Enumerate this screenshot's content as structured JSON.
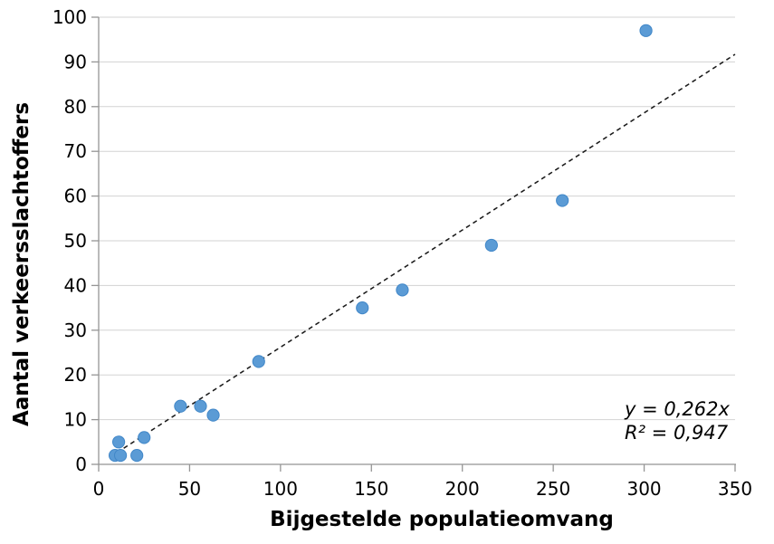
{
  "chart_data": {
    "type": "scatter",
    "title": "",
    "xlabel": "Bijgestelde populatieomvang",
    "ylabel": "Aantal verkeersslachtoffers",
    "xlim": [
      0,
      350
    ],
    "ylim": [
      0,
      100
    ],
    "x_ticks": [
      0,
      50,
      100,
      150,
      200,
      250,
      300,
      350
    ],
    "y_ticks": [
      0,
      10,
      20,
      30,
      40,
      50,
      60,
      70,
      80,
      90,
      100
    ],
    "grid": "horizontal",
    "legend_position": "none",
    "points": [
      [
        9,
        2
      ],
      [
        11,
        5
      ],
      [
        12,
        2
      ],
      [
        21,
        2
      ],
      [
        25,
        6
      ],
      [
        45,
        13
      ],
      [
        56,
        13
      ],
      [
        63,
        11
      ],
      [
        88,
        23
      ],
      [
        145,
        35
      ],
      [
        167,
        39
      ],
      [
        216,
        49
      ],
      [
        255,
        59
      ],
      [
        301,
        97
      ]
    ],
    "trendline": {
      "slope": 0.262,
      "intercept": 0,
      "x_start": 10,
      "x_end": 350,
      "style": "dashed",
      "equation_label": "y = 0,262x",
      "r2_label": "R² = 0,947"
    },
    "colors": {
      "marker": "#5B9BD5",
      "marker_edge": "#4187C8",
      "gridline": "#D3D3D3",
      "axis": "#959595",
      "trendline": "#1A1A1A",
      "text": "#000000"
    }
  }
}
